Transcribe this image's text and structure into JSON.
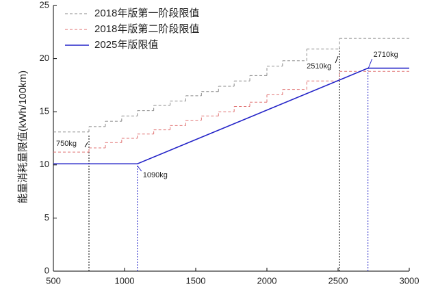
{
  "chart_data": {
    "type": "line",
    "ylabel": "能量消耗量限值(kWh/100km)",
    "xlim": [
      500,
      3000
    ],
    "xticks": [
      500,
      1000,
      1500,
      2000,
      2500,
      3000
    ],
    "ylim": [
      0,
      25
    ],
    "yticks": [
      0,
      5,
      10,
      15,
      20,
      25
    ],
    "legend": "upper left",
    "series": [
      {
        "name": "2018年版第一阶段限值",
        "color": "#888888",
        "style": "dashed",
        "step": true,
        "x": [
          500,
          750,
          865,
          980,
          1090,
          1205,
          1320,
          1430,
          1540,
          1660,
          1770,
          1880,
          2000,
          2110,
          2280,
          2510
        ],
        "values": [
          13.1,
          13.6,
          14.1,
          14.6,
          15.1,
          15.6,
          16.0,
          16.5,
          16.9,
          17.4,
          17.9,
          18.4,
          19.3,
          19.8,
          20.9,
          21.9
        ]
      },
      {
        "name": "2018年版第二阶段限值",
        "color": "#e07070",
        "style": "dashed",
        "step": true,
        "x": [
          500,
          750,
          865,
          980,
          1090,
          1205,
          1320,
          1430,
          1540,
          1660,
          1770,
          1880,
          2000,
          2110,
          2280,
          2510
        ],
        "values": [
          11.2,
          11.6,
          12.1,
          12.5,
          12.9,
          13.3,
          13.7,
          14.2,
          14.6,
          15.0,
          15.5,
          15.9,
          16.6,
          17.1,
          17.9,
          18.8
        ]
      },
      {
        "name": "2025年版限值",
        "color": "#2424c8",
        "style": "solid",
        "step": false,
        "x": [
          500,
          1090,
          2710,
          3000
        ],
        "values": [
          10.1,
          10.1,
          19.1,
          19.1
        ]
      }
    ],
    "annotations": [
      {
        "text": "750kg",
        "x": 750,
        "color": "#000000"
      },
      {
        "text": "1090kg",
        "x": 1090,
        "color": "#2424c8"
      },
      {
        "text": "2510kg",
        "x": 2510,
        "color": "#000000"
      },
      {
        "text": "2710kg",
        "x": 2710,
        "color": "#2424c8"
      }
    ]
  }
}
